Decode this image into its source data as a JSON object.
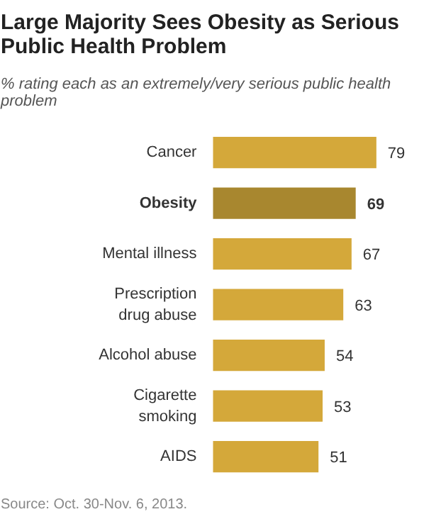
{
  "chart_data": {
    "type": "bar",
    "orientation": "horizontal",
    "title": "Large Majority Sees Obesity as Serious Public Health Problem",
    "subtitle": "% rating each as an extremely/very serious public health problem",
    "categories": [
      "Cancer",
      "Obesity",
      "Mental illness",
      "Prescription drug abuse",
      "Alcohol abuse",
      "Cigarette smoking",
      "AIDS"
    ],
    "values": [
      79,
      69,
      67,
      63,
      54,
      53,
      51
    ],
    "colors": [
      "#d4a83a",
      "#a8872f",
      "#d4a83a",
      "#d4a83a",
      "#d4a83a",
      "#d4a83a",
      "#d4a83a"
    ],
    "data_labels": true,
    "grid": false,
    "annotations": [
      "Source: Oct. 30-Nov. 6, 2013."
    ]
  }
}
